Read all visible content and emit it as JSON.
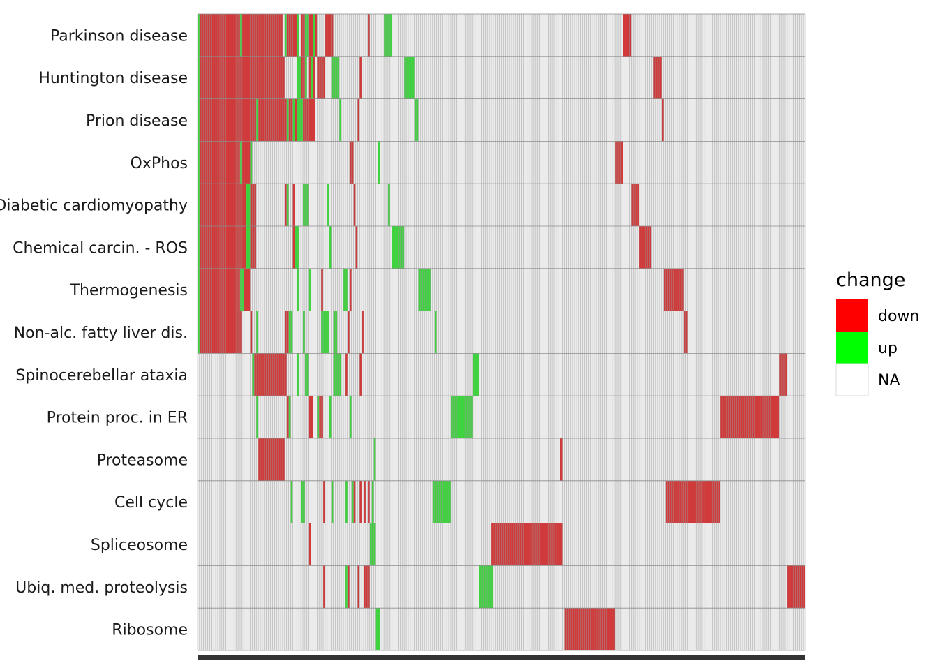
{
  "chart_data": {
    "type": "heatmap",
    "title": "",
    "xlabel": "",
    "ylabel": "",
    "n_genes": 300,
    "rows": [
      {
        "label": "Parkinson disease",
        "down": [
          [
            0,
            42
          ],
          [
            44,
            50
          ],
          [
            51,
            53
          ],
          [
            55,
            57
          ],
          [
            58,
            59
          ],
          [
            63,
            67
          ],
          [
            84,
            85
          ],
          [
            210,
            214
          ]
        ],
        "up": [
          [
            0,
            1
          ],
          [
            21,
            22
          ],
          [
            43,
            44
          ],
          [
            49,
            50
          ],
          [
            53,
            55
          ],
          [
            57,
            58
          ],
          [
            92,
            96
          ]
        ]
      },
      {
        "label": "Huntington disease",
        "down": [
          [
            0,
            43
          ],
          [
            51,
            53
          ],
          [
            55,
            56
          ],
          [
            57,
            58
          ],
          [
            59,
            63
          ],
          [
            80,
            81
          ],
          [
            225,
            229
          ]
        ],
        "up": [
          [
            0,
            1
          ],
          [
            49,
            50
          ],
          [
            50,
            51
          ],
          [
            53,
            54
          ],
          [
            56,
            57
          ],
          [
            66,
            70
          ],
          [
            102,
            107
          ]
        ]
      },
      {
        "label": "Prion disease",
        "down": [
          [
            0,
            29
          ],
          [
            30,
            44
          ],
          [
            45,
            47
          ],
          [
            48,
            49
          ],
          [
            52,
            58
          ],
          [
            79,
            80
          ],
          [
            229,
            230
          ]
        ],
        "up": [
          [
            0,
            1
          ],
          [
            29,
            30
          ],
          [
            44,
            45
          ],
          [
            47,
            48
          ],
          [
            49,
            52
          ],
          [
            70,
            71
          ],
          [
            107,
            109
          ]
        ]
      },
      {
        "label": "OxPhos",
        "down": [
          [
            0,
            21
          ],
          [
            22,
            27
          ],
          [
            75,
            77
          ],
          [
            206,
            210
          ]
        ],
        "up": [
          [
            0,
            1
          ],
          [
            21,
            22
          ],
          [
            26,
            27
          ],
          [
            89,
            90
          ]
        ]
      },
      {
        "label": "Diabetic cardiomyopathy",
        "down": [
          [
            0,
            24
          ],
          [
            26,
            29
          ],
          [
            43,
            44
          ],
          [
            47,
            48
          ],
          [
            54,
            55
          ],
          [
            77,
            78
          ],
          [
            214,
            218
          ]
        ],
        "up": [
          [
            0,
            1
          ],
          [
            24,
            26
          ],
          [
            44,
            45
          ],
          [
            52,
            55
          ],
          [
            64,
            65
          ],
          [
            94,
            95
          ]
        ]
      },
      {
        "label": "Chemical carcin. - ROS",
        "down": [
          [
            0,
            24
          ],
          [
            26,
            29
          ],
          [
            47,
            48
          ],
          [
            78,
            79
          ],
          [
            218,
            224
          ]
        ],
        "up": [
          [
            0,
            1
          ],
          [
            24,
            26
          ],
          [
            48,
            50
          ],
          [
            65,
            66
          ],
          [
            96,
            102
          ]
        ]
      },
      {
        "label": "Thermogenesis",
        "down": [
          [
            0,
            21
          ],
          [
            23,
            26
          ],
          [
            61,
            62
          ],
          [
            75,
            76
          ],
          [
            230,
            240
          ]
        ],
        "up": [
          [
            0,
            1
          ],
          [
            21,
            23
          ],
          [
            49,
            50
          ],
          [
            55,
            56
          ],
          [
            72,
            74
          ],
          [
            109,
            115
          ]
        ]
      },
      {
        "label": "Non-alc. fatty liver dis.",
        "down": [
          [
            0,
            22
          ],
          [
            26,
            27
          ],
          [
            43,
            45
          ],
          [
            74,
            75
          ],
          [
            81,
            82
          ],
          [
            240,
            242
          ]
        ],
        "up": [
          [
            0,
            1
          ],
          [
            29,
            30
          ],
          [
            45,
            47
          ],
          [
            52,
            53
          ],
          [
            61,
            65
          ],
          [
            67,
            69
          ],
          [
            117,
            118
          ]
        ]
      },
      {
        "label": "Spinocerebellar ataxia",
        "down": [
          [
            27,
            44
          ],
          [
            73,
            74
          ],
          [
            80,
            81
          ],
          [
            287,
            291
          ]
        ],
        "up": [
          [
            27,
            28
          ],
          [
            49,
            50
          ],
          [
            53,
            55
          ],
          [
            67,
            71
          ],
          [
            136,
            139
          ]
        ]
      },
      {
        "label": "Protein proc. in ER",
        "down": [
          [
            44,
            46
          ],
          [
            55,
            57
          ],
          [
            60,
            62
          ],
          [
            258,
            287
          ]
        ],
        "up": [
          [
            29,
            30
          ],
          [
            45,
            46
          ],
          [
            59,
            60
          ],
          [
            65,
            66
          ],
          [
            75,
            76
          ],
          [
            125,
            136
          ]
        ]
      },
      {
        "label": "Proteasome",
        "down": [
          [
            30,
            43
          ],
          [
            179,
            180
          ]
        ],
        "up": [
          [
            87,
            88
          ]
        ]
      },
      {
        "label": "Cell cycle",
        "down": [
          [
            62,
            63
          ],
          [
            77,
            78
          ],
          [
            80,
            81
          ],
          [
            82,
            83
          ],
          [
            84,
            85
          ],
          [
            231,
            240
          ],
          [
            240,
            258
          ]
        ],
        "up": [
          [
            46,
            47
          ],
          [
            51,
            53
          ],
          [
            66,
            67
          ],
          [
            73,
            74
          ],
          [
            76,
            77
          ],
          [
            86,
            87
          ],
          [
            116,
            125
          ]
        ]
      },
      {
        "label": "Spliceosome",
        "down": [
          [
            55,
            56
          ],
          [
            145,
            180
          ]
        ],
        "up": [
          [
            85,
            88
          ]
        ]
      },
      {
        "label": "Ubiq. med. proteolysis",
        "down": [
          [
            62,
            63
          ],
          [
            74,
            75
          ],
          [
            79,
            80
          ],
          [
            82,
            85
          ],
          [
            291,
            300
          ]
        ],
        "up": [
          [
            73,
            74
          ],
          [
            139,
            146
          ]
        ]
      },
      {
        "label": "Ribosome",
        "down": [
          [
            181,
            206
          ]
        ],
        "up": [
          [
            88,
            90
          ]
        ]
      }
    ],
    "legend": {
      "title": "change",
      "position": "right",
      "entries": [
        {
          "label": "down",
          "color": "#ff0000"
        },
        {
          "label": "up",
          "color": "#00ff00"
        },
        {
          "label": "NA",
          "color": "#ffffff"
        }
      ]
    }
  },
  "colors": {
    "down_tile": "#d13a3a",
    "up_tile": "#3fd33f",
    "na_tile": "#ebebeb",
    "tile_border": "#9a9a9a",
    "row_separator": "#8c8c8c",
    "bottom_bar": "#333333"
  }
}
